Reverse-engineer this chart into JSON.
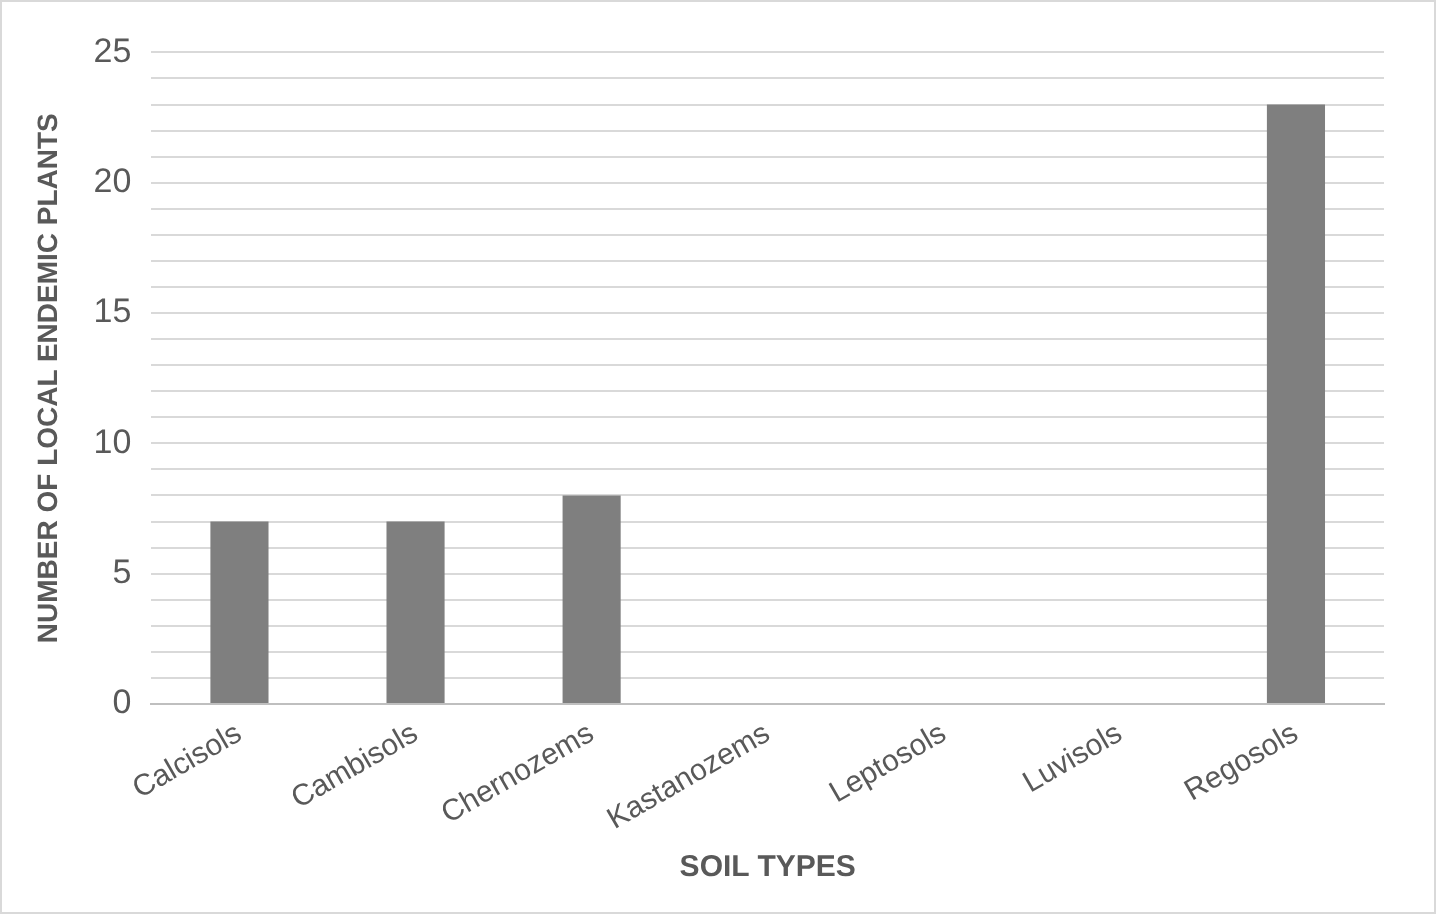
{
  "chart_data": {
    "type": "bar",
    "xlabel": "SOIL TYPES",
    "ylabel": "NUMBER OF LOCAL ENDEMIC PLANTS",
    "categories": [
      "Calcisols",
      "Cambisols",
      "Chernozems",
      "Kastanozems",
      "Leptosols",
      "Luvisols",
      "Regosols"
    ],
    "values": [
      7,
      7,
      8,
      0,
      0,
      0,
      23
    ],
    "color": "#7f7f7f",
    "ylim": [
      0,
      25
    ],
    "yticks": [
      0,
      {
        "value": 1,
        "label": null
      },
      {
        "value": 2,
        "label": null
      },
      {
        "value": 3,
        "label": null
      },
      {
        "value": 4,
        "label": null
      },
      5,
      {
        "value": 6,
        "label": null
      },
      {
        "value": 7,
        "label": null
      },
      {
        "value": 8,
        "label": null
      },
      {
        "value": 9,
        "label": null
      },
      10,
      {
        "value": 11,
        "label": null
      },
      {
        "value": 12,
        "label": null
      },
      {
        "value": 13,
        "label": null
      },
      {
        "value": 14,
        "label": null
      },
      15,
      {
        "value": 16,
        "label": null
      },
      {
        "value": 17,
        "label": null
      },
      {
        "value": 18,
        "label": null
      },
      {
        "value": 19,
        "label": null
      },
      20,
      {
        "value": 21,
        "label": null
      },
      {
        "value": 22,
        "label": null
      },
      {
        "value": 23,
        "label": null
      },
      {
        "value": 24,
        "label": null
      },
      25
    ],
    "grid": "y",
    "legend": false
  }
}
